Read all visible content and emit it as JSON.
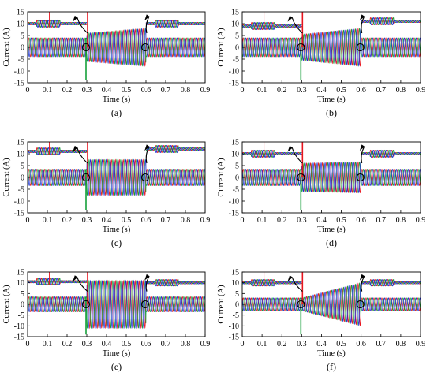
{
  "figure": {
    "colors": {
      "phase_a": "#e8141e",
      "phase_b": "#15a03a",
      "phase_c": "#1e2fd6",
      "axis": "#000000"
    }
  },
  "chart_data": [
    {
      "type": "line",
      "panel_label": "(a)",
      "xlabel": "Time (s)",
      "ylabel": "Current (A)",
      "xlim": [
        0,
        0.9
      ],
      "ylim": [
        -15,
        15
      ],
      "xticks": [
        "0",
        "0.1",
        "0.2",
        "0.3",
        "0.4",
        "0.5",
        "0.6",
        "0.7",
        "0.8",
        "0.9"
      ],
      "yticks": [
        "-15",
        "-10",
        "-5",
        "0",
        "5",
        "10",
        "15"
      ],
      "fault_start": 0.3,
      "fault_end": 0.6,
      "amp_normal": 4,
      "amp_fault_start": 6,
      "amp_fault_end": 8,
      "inset_left_zero": 10,
      "inset_right_zero": 10,
      "series": [
        {
          "phase": "a"
        },
        {
          "phase": "b"
        },
        {
          "phase": "c"
        }
      ]
    },
    {
      "type": "line",
      "panel_label": "(b)",
      "xlabel": "Time (s)",
      "ylabel": "Current (A)",
      "xlim": [
        0,
        0.9
      ],
      "ylim": [
        -15,
        15
      ],
      "xticks": [
        "0",
        "0.1",
        "0.2",
        "0.3",
        "0.4",
        "0.5",
        "0.6",
        "0.7",
        "0.8",
        "0.9"
      ],
      "yticks": [
        "-15",
        "-10",
        "-5",
        "0",
        "5",
        "10",
        "15"
      ],
      "fault_start": 0.3,
      "fault_end": 0.6,
      "amp_normal": 4,
      "amp_fault_start": 5.5,
      "amp_fault_end": 8,
      "inset_left_zero": 9,
      "inset_right_zero": 11,
      "series": [
        {
          "phase": "a"
        },
        {
          "phase": "b"
        },
        {
          "phase": "c"
        }
      ]
    },
    {
      "type": "line",
      "panel_label": "(c)",
      "xlabel": "Time (s)",
      "ylabel": "Current (A)",
      "xlim": [
        0,
        0.9
      ],
      "ylim": [
        -15,
        15
      ],
      "xticks": [
        "0",
        "0.1",
        "0.2",
        "0.3",
        "0.4",
        "0.5",
        "0.6",
        "0.7",
        "0.8",
        "0.9"
      ],
      "yticks": [
        "-15",
        "-10",
        "-5",
        "0",
        "5",
        "10",
        "15"
      ],
      "fault_start": 0.3,
      "fault_end": 0.6,
      "amp_normal": 3.5,
      "amp_fault_start": 7.5,
      "amp_fault_end": 7.5,
      "inset_left_zero": 11,
      "inset_right_zero": 12,
      "series": [
        {
          "phase": "a"
        },
        {
          "phase": "b"
        },
        {
          "phase": "c"
        }
      ]
    },
    {
      "type": "line",
      "panel_label": "(d)",
      "xlabel": "Time (s)",
      "ylabel": "Current (A)",
      "xlim": [
        0,
        0.9
      ],
      "ylim": [
        -15,
        15
      ],
      "xticks": [
        "0",
        "0.1",
        "0.2",
        "0.3",
        "0.4",
        "0.5",
        "0.6",
        "0.7",
        "0.8",
        "0.9"
      ],
      "yticks": [
        "-15",
        "-10",
        "-5",
        "0",
        "5",
        "10",
        "15"
      ],
      "fault_start": 0.3,
      "fault_end": 0.6,
      "amp_normal": 3.5,
      "amp_fault_start": 6,
      "amp_fault_end": 6.5,
      "inset_left_zero": 10,
      "inset_right_zero": 10,
      "series": [
        {
          "phase": "a"
        },
        {
          "phase": "b"
        },
        {
          "phase": "c"
        }
      ]
    },
    {
      "type": "line",
      "panel_label": "(e)",
      "xlabel": "Time (s)",
      "ylabel": "Current (A)",
      "xlim": [
        0,
        0.9
      ],
      "ylim": [
        -15,
        15
      ],
      "xticks": [
        "0",
        "0.1",
        "0.2",
        "0.3",
        "0.4",
        "0.5",
        "0.6",
        "0.7",
        "0.8",
        "0.9"
      ],
      "yticks": [
        "-15",
        "-10",
        "-5",
        "0",
        "5",
        "10",
        "15"
      ],
      "fault_start": 0.3,
      "fault_end": 0.6,
      "amp_normal": 3.5,
      "amp_fault_start": 11,
      "amp_fault_end": 11,
      "inset_left_zero": 10.5,
      "inset_right_zero": 10,
      "series": [
        {
          "phase": "a"
        },
        {
          "phase": "b"
        },
        {
          "phase": "c"
        }
      ]
    },
    {
      "type": "line",
      "panel_label": "(f)",
      "xlabel": "Time (s)",
      "ylabel": "Current (A)",
      "xlim": [
        0,
        0.9
      ],
      "ylim": [
        -15,
        15
      ],
      "xticks": [
        "0",
        "0.1",
        "0.2",
        "0.3",
        "0.4",
        "0.5",
        "0.6",
        "0.7",
        "0.8",
        "0.9"
      ],
      "yticks": [
        "-15",
        "-10",
        "-5",
        "0",
        "5",
        "10",
        "15"
      ],
      "fault_start": 0.3,
      "fault_end": 0.6,
      "amp_normal": 3,
      "amp_fault_start": 3,
      "amp_fault_end": 10,
      "inset_left_zero": 10,
      "inset_right_zero": 10,
      "series": [
        {
          "phase": "a"
        },
        {
          "phase": "b"
        },
        {
          "phase": "c"
        }
      ]
    }
  ]
}
